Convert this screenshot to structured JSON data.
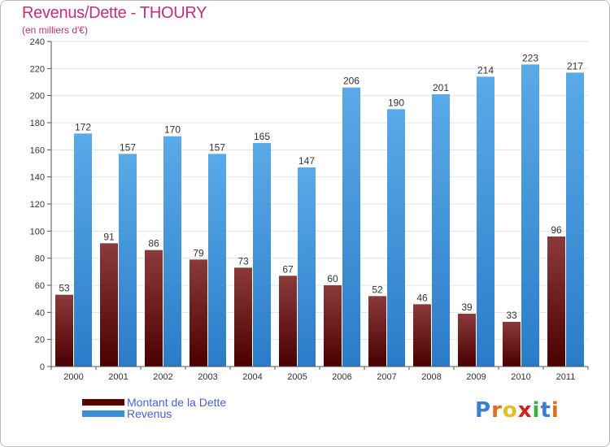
{
  "chart_data": {
    "type": "bar",
    "title": "Revenus/Dette - THOURY",
    "subtitle": "(en milliers d'€)",
    "categories": [
      "2000",
      "2001",
      "2002",
      "2003",
      "2004",
      "2005",
      "2006",
      "2007",
      "2008",
      "2009",
      "2010",
      "2011"
    ],
    "series": [
      {
        "name": "Montant de la Dette",
        "values": [
          53,
          91,
          86,
          79,
          73,
          67,
          60,
          52,
          46,
          39,
          33,
          96
        ],
        "color_top": "#8b3a3a",
        "color_bottom": "#4a0000"
      },
      {
        "name": "Revenus",
        "values": [
          172,
          157,
          170,
          157,
          165,
          147,
          206,
          190,
          201,
          214,
          223,
          217
        ],
        "color_top": "#5aaae8",
        "color_bottom": "#2b7cc8"
      }
    ],
    "yticks": [
      0,
      20,
      40,
      60,
      80,
      100,
      120,
      140,
      160,
      180,
      200,
      220,
      240
    ],
    "ylim": [
      0,
      240
    ],
    "grid": true,
    "legend_position": "bottom-left",
    "xlabel": "",
    "ylabel": ""
  },
  "legend": {
    "items": [
      {
        "label": "Montant de la Dette",
        "color": "#5a0000"
      },
      {
        "label": "Revenus",
        "color": "#3a8fd8"
      }
    ]
  },
  "brand": {
    "letters": [
      "P",
      "r",
      "o",
      "x",
      "i",
      "t",
      "i"
    ],
    "colors": [
      "#3a7fd0",
      "#e07020",
      "#e0c020",
      "#d02020",
      "#3ab040",
      "#3a7fd0",
      "#e07020"
    ]
  }
}
